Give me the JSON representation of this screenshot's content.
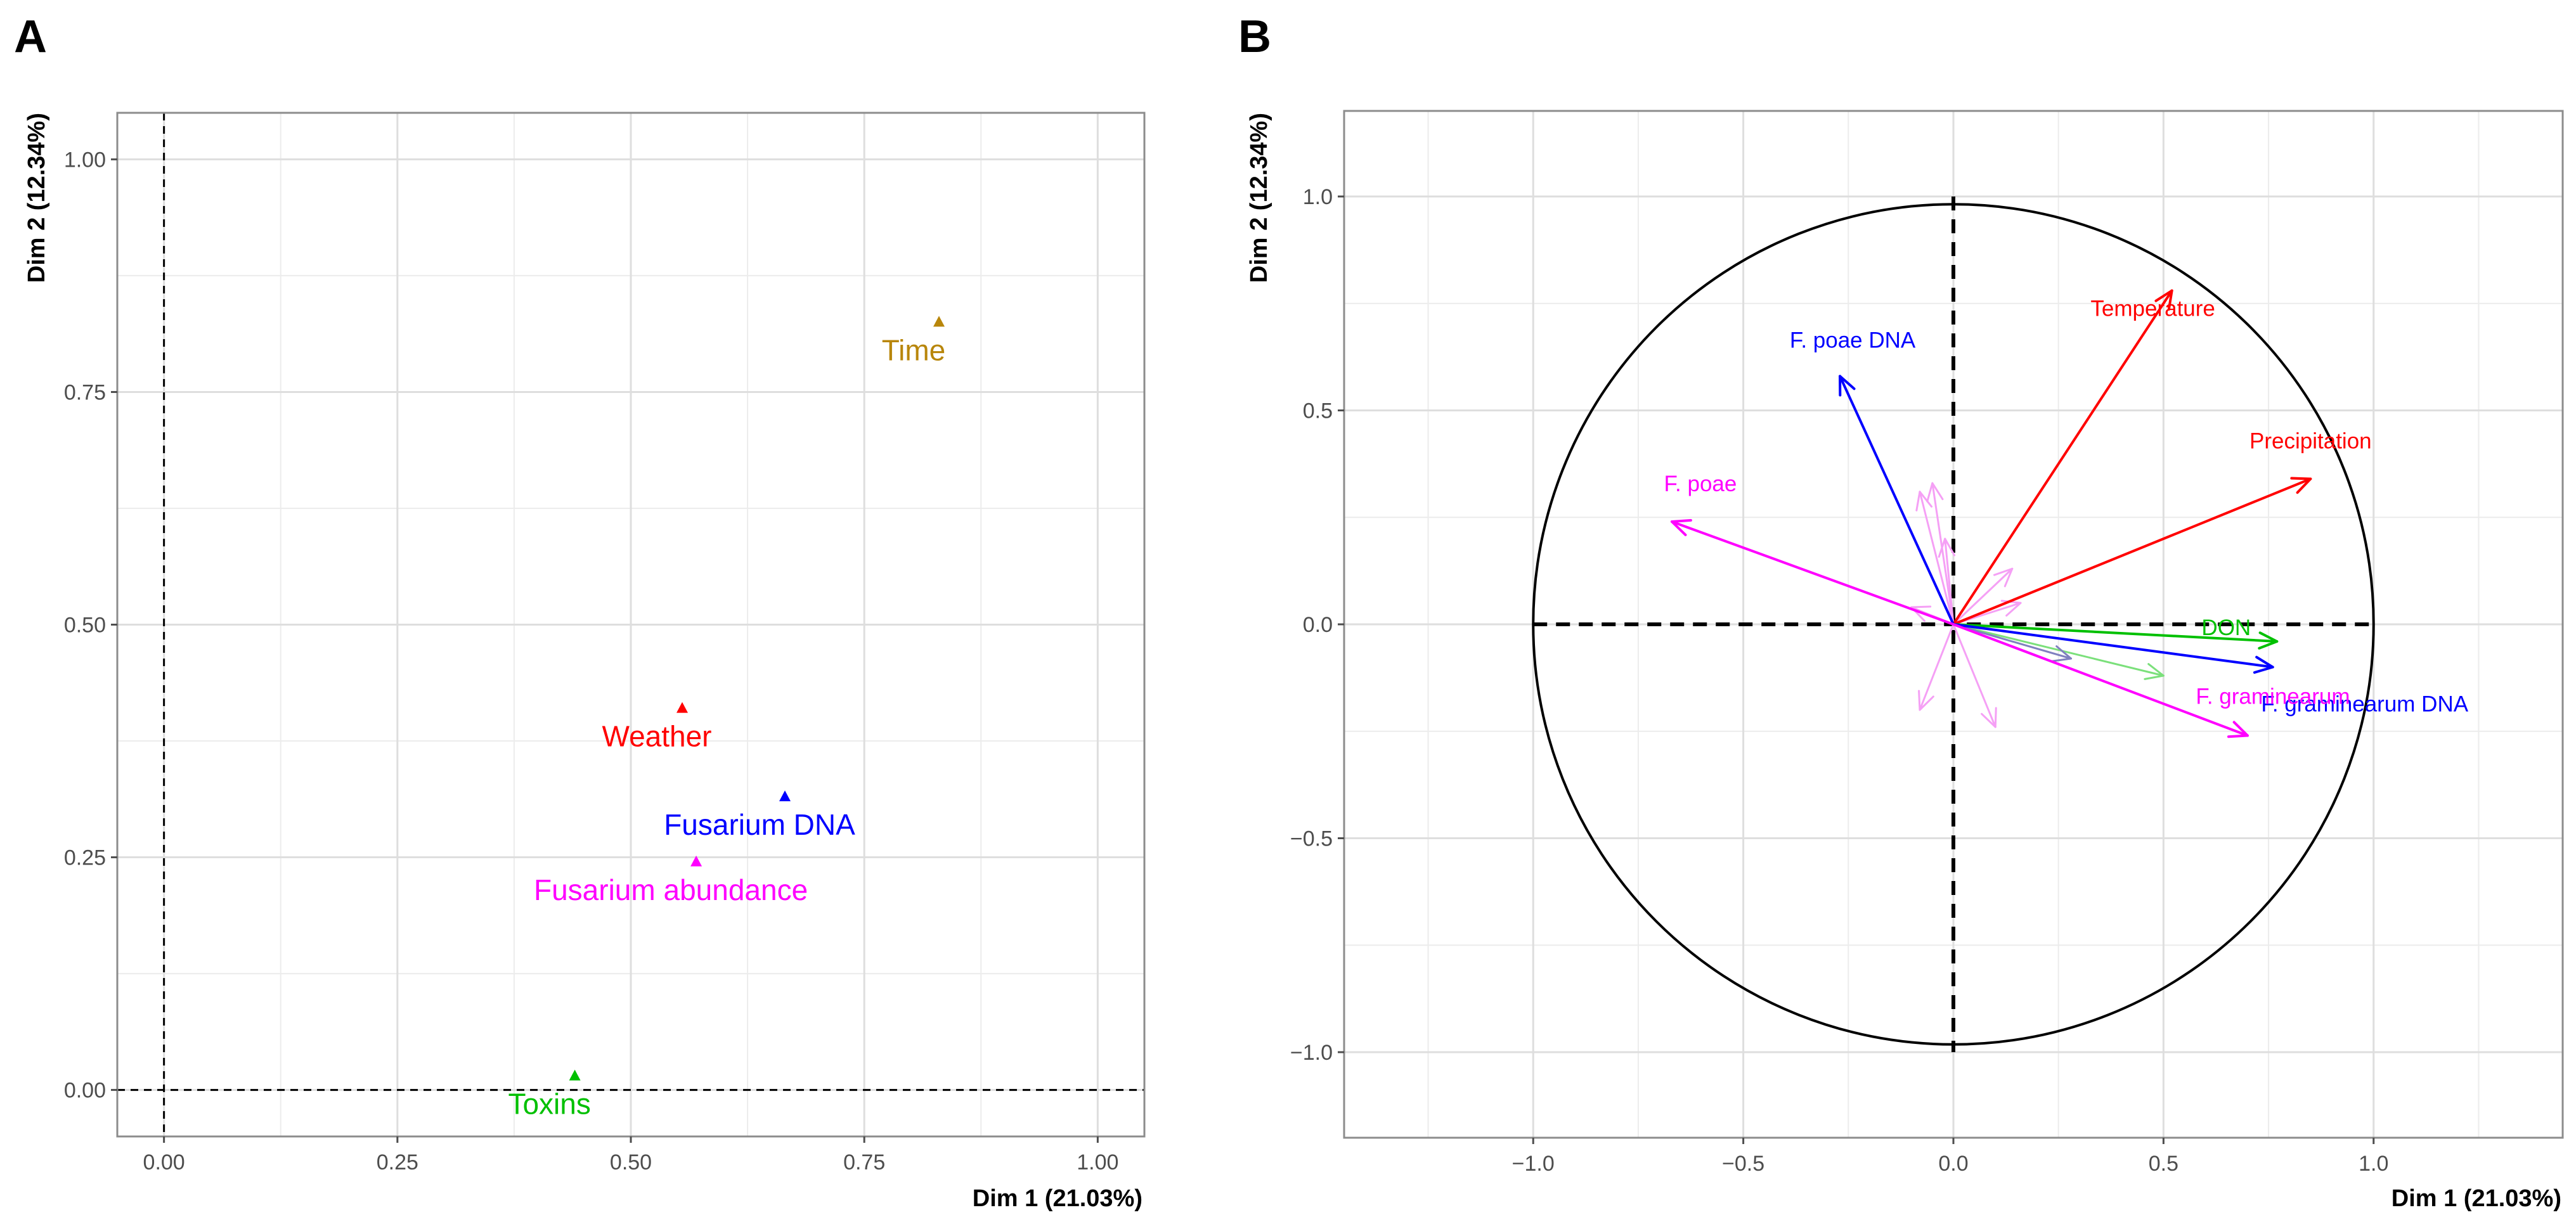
{
  "chart_data": [
    {
      "panel": "A",
      "type": "scatter",
      "xlabel": "Dim 1 (21.03%)",
      "ylabel": "Dim 2 (12.34%)",
      "xlim": [
        -0.05,
        1.05
      ],
      "ylim": [
        -0.05,
        1.05
      ],
      "xticks": [
        0.0,
        0.25,
        0.5,
        0.75,
        1.0
      ],
      "yticks": [
        0.0,
        0.25,
        0.5,
        0.75,
        1.0
      ],
      "xtick_labels": [
        "0.00",
        "0.25",
        "0.50",
        "0.75",
        "1.00"
      ],
      "ytick_labels": [
        "0.00",
        "0.25",
        "0.50",
        "0.75",
        "1.00"
      ],
      "grid": true,
      "reference_lines": {
        "x": 0,
        "y": 0,
        "style": "dashed"
      },
      "points": [
        {
          "label": "Time",
          "x": 0.83,
          "y": 0.825,
          "color": "#b8860b"
        },
        {
          "label": "Weather",
          "x": 0.555,
          "y": 0.41,
          "color": "#ff0000"
        },
        {
          "label": "Fusarium DNA",
          "x": 0.665,
          "y": 0.315,
          "color": "#0000ff"
        },
        {
          "label": "Fusarium abundance",
          "x": 0.57,
          "y": 0.245,
          "color": "#ff00ff"
        },
        {
          "label": "Toxins",
          "x": 0.44,
          "y": 0.015,
          "color": "#00c000"
        }
      ]
    },
    {
      "panel": "B",
      "type": "correlation_circle",
      "xlabel": "Dim 1 (21.03%)",
      "ylabel": "Dim 2 (12.34%)",
      "xlim": [
        -1.45,
        1.45
      ],
      "ylim": [
        -1.2,
        1.2
      ],
      "xticks": [
        -1.0,
        -0.5,
        0.0,
        0.5,
        1.0
      ],
      "yticks": [
        -1.0,
        -0.5,
        0.0,
        0.5,
        1.0
      ],
      "xtick_labels": [
        "−1.0",
        "−0.5",
        "0.0",
        "0.5",
        "1.0"
      ],
      "ytick_labels": [
        "−1.0",
        "−0.5",
        "0.0",
        "0.5",
        "1.0"
      ],
      "grid": true,
      "circle_radius": 1.0,
      "reference_lines": {
        "x": 0,
        "y": 0,
        "style": "dashed"
      },
      "arrows": [
        {
          "label": "Temperature",
          "x": 0.52,
          "y": 0.78,
          "color": "#ff0000"
        },
        {
          "label": "Precipitation",
          "x": 0.85,
          "y": 0.34,
          "color": "#ff0000"
        },
        {
          "label": "F. poae DNA",
          "x": -0.27,
          "y": 0.58,
          "color": "#0000ff"
        },
        {
          "label": "F. poae",
          "x": -0.67,
          "y": 0.24,
          "color": "#ff00ff"
        },
        {
          "label": "DON",
          "x": 0.77,
          "y": -0.04,
          "color": "#00c000"
        },
        {
          "label": "F. graminearum DNA",
          "x": 0.76,
          "y": -0.1,
          "color": "#0000ff"
        },
        {
          "label": "F. graminearum",
          "x": 0.7,
          "y": -0.26,
          "color": "#ff00ff"
        }
      ],
      "minor_arrows": [
        {
          "x": 0.5,
          "y": -0.12,
          "color": "#7be07b"
        },
        {
          "x": 0.28,
          "y": -0.08,
          "color": "#8080c0"
        },
        {
          "x": -0.05,
          "y": 0.33,
          "color": "#f5a0f5"
        },
        {
          "x": -0.08,
          "y": 0.31,
          "color": "#f5a0f5"
        },
        {
          "x": -0.02,
          "y": 0.2,
          "color": "#f5a0f5"
        },
        {
          "x": 0.14,
          "y": 0.13,
          "color": "#f5a0f5"
        },
        {
          "x": 0.16,
          "y": 0.05,
          "color": "#f5a0f5"
        },
        {
          "x": -0.1,
          "y": 0.04,
          "color": "#f5a0f5"
        },
        {
          "x": -0.08,
          "y": -0.2,
          "color": "#f5a0f5"
        },
        {
          "x": 0.1,
          "y": -0.24,
          "color": "#f5a0f5"
        }
      ]
    }
  ]
}
